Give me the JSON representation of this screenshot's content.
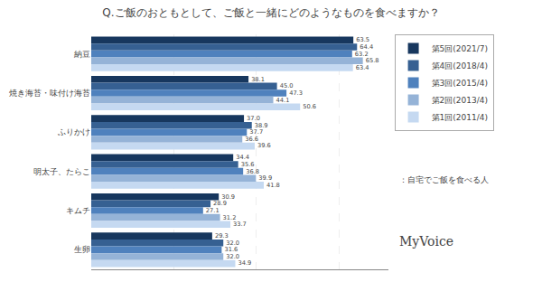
{
  "chart_data": {
    "type": "bar",
    "orientation": "horizontal",
    "title": "Q.ご飯のおともとして、ご飯と一緒にどのようなものを食べますか？",
    "categories": [
      "納豆",
      "焼き海苔・味付け海苔",
      "ふりかけ",
      "明太子、たらこ",
      "キムチ",
      "生卵"
    ],
    "series": [
      {
        "name": "第5回(2021/7)",
        "color": "#17375E",
        "values": [
          63.5,
          38.1,
          37.0,
          34.4,
          30.9,
          29.3
        ],
        "value_labels": [
          "63.5",
          "38.1",
          "37.0",
          "34.4",
          "30.9",
          "29.3"
        ]
      },
      {
        "name": "第4回(2018/4)",
        "color": "#366092",
        "values": [
          64.4,
          45.0,
          38.9,
          35.6,
          28.9,
          32.0
        ],
        "value_labels": [
          "64.4",
          "45.0",
          "38.9",
          "35.6",
          "28.9",
          "32.0"
        ]
      },
      {
        "name": "第3回(2015/4)",
        "color": "#4F81BD",
        "values": [
          63.2,
          47.3,
          37.7,
          36.8,
          27.1,
          31.6
        ],
        "value_labels": [
          "63.2",
          "47.3",
          "37.7",
          "36.8",
          "27.1",
          "31.6"
        ]
      },
      {
        "name": "第2回(2013/4)",
        "color": "#95B3D7",
        "values": [
          65.8,
          44.1,
          36.6,
          39.9,
          31.2,
          32.0
        ],
        "value_labels": [
          "65.8",
          "44.1",
          "36.6",
          "39.9",
          "31.2",
          "32.0"
        ]
      },
      {
        "name": "第1回(2011/4)",
        "color": "#C5D9F1",
        "values": [
          63.4,
          50.6,
          39.6,
          41.8,
          33.7,
          34.9
        ],
        "value_labels": [
          "63.4",
          "50.6",
          "39.6",
          "41.8",
          "33.7",
          "34.9"
        ]
      }
    ],
    "annotations": [
      "：自宅でご飯を食べる人",
      "MyVoice"
    ],
    "xlim": [
      0,
      72
    ],
    "xticks": [
      20,
      40,
      60
    ],
    "grid": true,
    "data_labels": true,
    "tick_labels": "y",
    "legend": "right"
  }
}
